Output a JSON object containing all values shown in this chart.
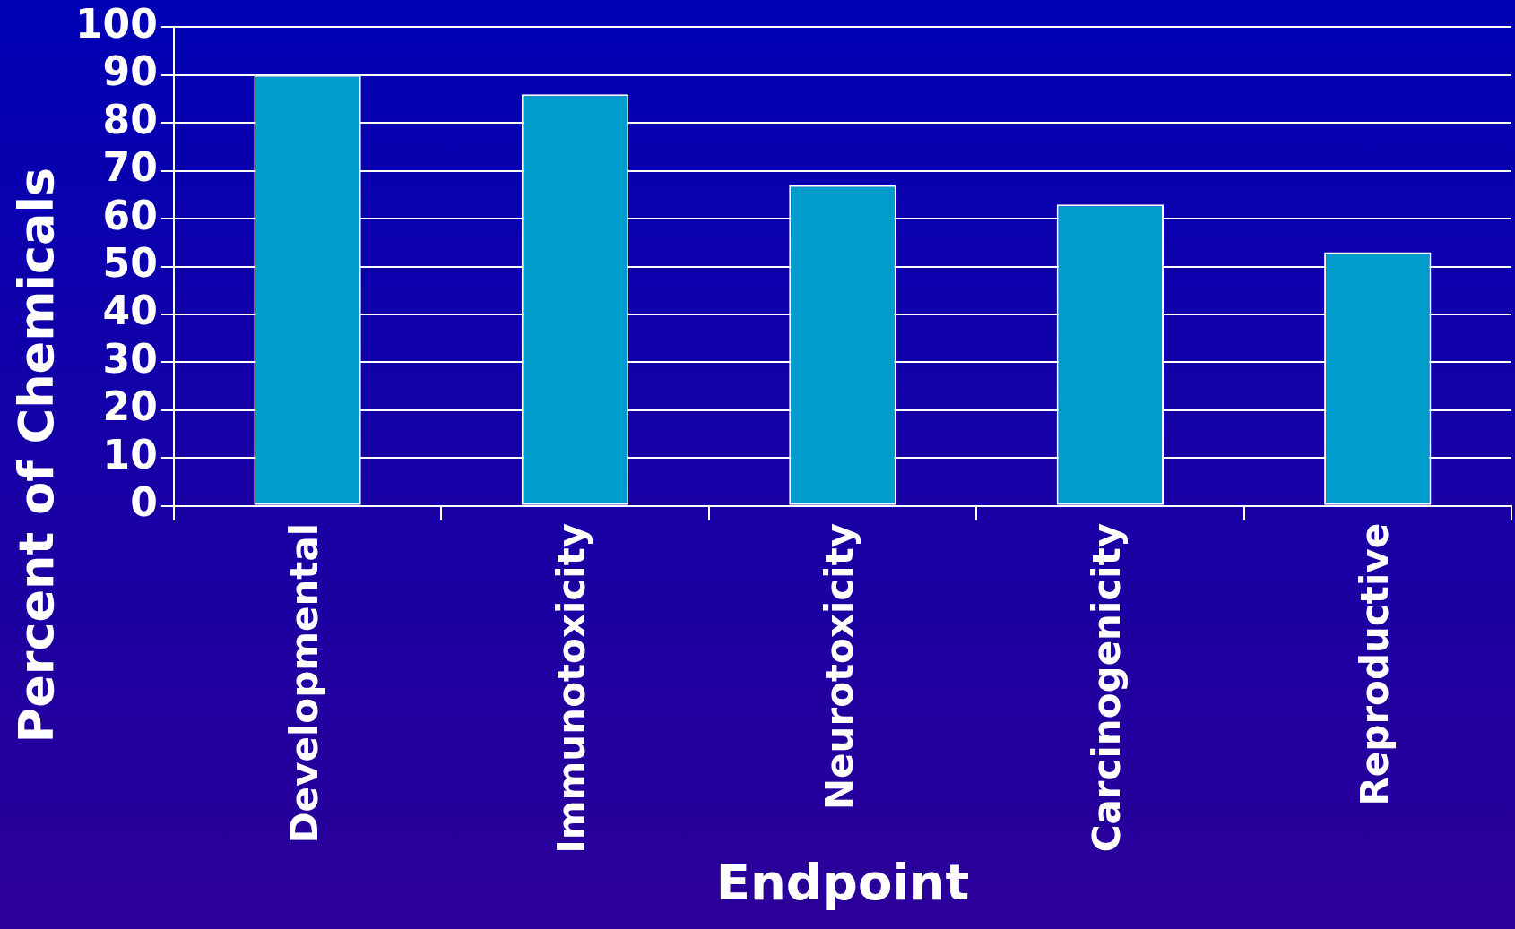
{
  "chart_data": {
    "type": "bar",
    "xlabel": "Endpoint",
    "ylabel": "Percent of Chemicals",
    "categories": [
      "Developmental",
      "Immunotoxicity",
      "Neurotoxicity",
      "Carcinogenicity",
      "Reproductive"
    ],
    "values": [
      90,
      86,
      67,
      63,
      53
    ],
    "color": "#009ccc",
    "ylim": [
      0,
      100
    ],
    "yticks": [
      0,
      10,
      20,
      30,
      40,
      50,
      60,
      70,
      80,
      90,
      100
    ],
    "grid": "y"
  }
}
